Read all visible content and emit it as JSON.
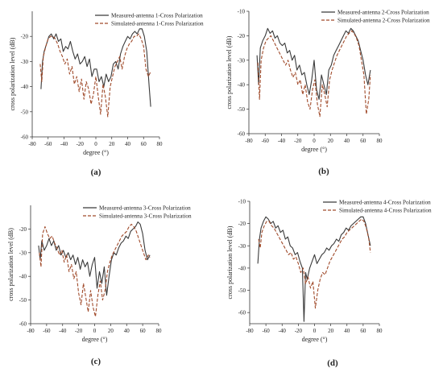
{
  "chart_data": [
    {
      "type": "line",
      "panel_label": "(a)",
      "xlabel": "degree (°)",
      "ylabel": "cross polarization level (dB)",
      "xlim": [
        -80,
        80
      ],
      "ylim": [
        -60,
        -10
      ],
      "xticks": [
        "-80",
        "-60",
        "-40",
        "-20",
        "0",
        "20",
        "40",
        "60",
        "80"
      ],
      "yticks": [
        "-20",
        "-30",
        "-40",
        "-50",
        "-60"
      ],
      "legend_position": "top-right",
      "series": [
        {
          "name": "Measured-antenna 1-Cross Polarization",
          "color": "#3a3a3a",
          "style": "solid",
          "x": [
            -69,
            -67,
            -65,
            -62,
            -59,
            -56,
            -53,
            -50,
            -47,
            -44,
            -41,
            -38,
            -35,
            -32,
            -29,
            -26,
            -23,
            -20,
            -17,
            -14,
            -11,
            -8,
            -5,
            -2,
            1,
            4,
            7,
            10,
            13,
            16,
            19,
            22,
            25,
            28,
            31,
            34,
            37,
            40,
            43,
            46,
            49,
            52,
            55,
            58,
            61,
            64,
            67,
            69
          ],
          "y": [
            -41,
            -30,
            -26,
            -23,
            -20,
            -19,
            -21,
            -19,
            -22,
            -21,
            -26,
            -24,
            -25,
            -22,
            -26,
            -29,
            -27,
            -31,
            -30,
            -28,
            -32,
            -29,
            -36,
            -33,
            -33,
            -38,
            -36,
            -40,
            -35,
            -38,
            -36,
            -31,
            -30,
            -33,
            -27,
            -24,
            -22,
            -20,
            -21,
            -19,
            -18,
            -19,
            -17,
            -17,
            -20,
            -26,
            -40,
            -48
          ]
        },
        {
          "name": "Simulated-antenna 1-Cross Polarization",
          "color": "#a04a2a",
          "style": "dashed",
          "x": [
            -70,
            -68,
            -66,
            -63,
            -60,
            -57,
            -54,
            -51,
            -48,
            -45,
            -42,
            -39,
            -36,
            -33,
            -30,
            -27,
            -24,
            -21,
            -18,
            -15,
            -12,
            -9,
            -6,
            -3,
            0,
            3,
            6,
            9,
            12,
            15,
            18,
            21,
            24,
            27,
            30,
            33,
            36,
            39,
            42,
            45,
            48,
            51,
            54,
            57,
            60,
            63,
            66,
            69
          ],
          "y": [
            -31,
            -38,
            -28,
            -24,
            -21,
            -20,
            -20,
            -21,
            -23,
            -26,
            -28,
            -31,
            -29,
            -35,
            -32,
            -39,
            -36,
            -42,
            -37,
            -45,
            -38,
            -41,
            -47,
            -43,
            -36,
            -44,
            -51,
            -39,
            -44,
            -52,
            -40,
            -36,
            -32,
            -30,
            -28,
            -33,
            -28,
            -25,
            -23,
            -22,
            -20,
            -20,
            -19,
            -21,
            -24,
            -33,
            -36,
            -34
          ]
        }
      ]
    },
    {
      "type": "line",
      "panel_label": "(b)",
      "xlabel": "degree (°)",
      "ylabel": "cross polarization level (dB)",
      "xlim": [
        -80,
        80
      ],
      "ylim": [
        -60,
        -10
      ],
      "xticks": [
        "-80",
        "-60",
        "-40",
        "-20",
        "0",
        "20",
        "40",
        "60",
        "80"
      ],
      "yticks": [
        "-10",
        "-20",
        "-30",
        "-40",
        "-50",
        "-60"
      ],
      "legend_position": "top-right",
      "series": [
        {
          "name": "Measured-antenna 2-Cross Polarization",
          "color": "#3a3a3a",
          "style": "solid",
          "x": [
            -70,
            -68,
            -66,
            -63,
            -60,
            -57,
            -54,
            -51,
            -48,
            -45,
            -42,
            -39,
            -36,
            -33,
            -30,
            -27,
            -24,
            -21,
            -18,
            -15,
            -12,
            -9,
            -6,
            -3,
            0,
            3,
            6,
            9,
            12,
            15,
            18,
            21,
            24,
            27,
            30,
            33,
            36,
            39,
            42,
            45,
            48,
            51,
            54,
            57,
            60,
            63,
            66,
            69
          ],
          "y": [
            -28,
            -40,
            -25,
            -22,
            -20,
            -17,
            -19,
            -18,
            -21,
            -20,
            -23,
            -24,
            -23,
            -27,
            -26,
            -30,
            -28,
            -34,
            -32,
            -36,
            -35,
            -40,
            -44,
            -38,
            -30,
            -42,
            -46,
            -36,
            -40,
            -44,
            -34,
            -32,
            -28,
            -26,
            -24,
            -22,
            -20,
            -18,
            -19,
            -17,
            -18,
            -20,
            -22,
            -26,
            -30,
            -36,
            -40,
            -34
          ]
        },
        {
          "name": "Simulated-antenna 2-Cross Polarization",
          "color": "#a04a2a",
          "style": "dashed",
          "x": [
            -69,
            -67,
            -65,
            -62,
            -59,
            -56,
            -53,
            -50,
            -47,
            -44,
            -41,
            -38,
            -35,
            -32,
            -29,
            -26,
            -23,
            -20,
            -17,
            -14,
            -11,
            -8,
            -5,
            -2,
            1,
            4,
            7,
            10,
            13,
            16,
            19,
            22,
            25,
            28,
            31,
            34,
            37,
            40,
            43,
            46,
            49,
            52,
            55,
            58,
            61,
            64,
            67,
            69
          ],
          "y": [
            -31,
            -46,
            -30,
            -25,
            -22,
            -21,
            -20,
            -22,
            -24,
            -26,
            -28,
            -30,
            -32,
            -30,
            -34,
            -37,
            -35,
            -40,
            -38,
            -44,
            -40,
            -47,
            -50,
            -42,
            -38,
            -48,
            -53,
            -40,
            -44,
            -49,
            -38,
            -34,
            -31,
            -28,
            -26,
            -24,
            -22,
            -20,
            -19,
            -18,
            -19,
            -21,
            -24,
            -30,
            -36,
            -52,
            -46,
            -36
          ]
        }
      ]
    },
    {
      "type": "line",
      "panel_label": "(c)",
      "xlabel": "degree (°)",
      "ylabel": "cross polarization level (dB)",
      "xlim": [
        -80,
        80
      ],
      "ylim": [
        -60,
        -10
      ],
      "xticks": [
        "-80",
        "-60",
        "-40",
        "-20",
        "0",
        "20",
        "40",
        "60",
        "80"
      ],
      "yticks": [
        "-20",
        "-30",
        "-40",
        "-50",
        "-60"
      ],
      "legend_position": "top-right",
      "series": [
        {
          "name": "Measured-antenna 3-Cross Polarization",
          "color": "#3a3a3a",
          "style": "solid",
          "x": [
            -70,
            -68,
            -66,
            -63,
            -60,
            -57,
            -54,
            -51,
            -48,
            -45,
            -42,
            -39,
            -36,
            -33,
            -30,
            -27,
            -24,
            -21,
            -18,
            -15,
            -12,
            -9,
            -6,
            -3,
            0,
            3,
            6,
            9,
            12,
            15,
            18,
            21,
            24,
            27,
            30,
            33,
            36,
            39,
            42,
            45,
            48,
            51,
            54,
            57,
            60,
            63,
            66,
            69
          ],
          "y": [
            -27,
            -33,
            -25,
            -29,
            -27,
            -24,
            -27,
            -25,
            -29,
            -27,
            -31,
            -29,
            -32,
            -30,
            -33,
            -31,
            -35,
            -32,
            -37,
            -33,
            -36,
            -34,
            -40,
            -35,
            -32,
            -45,
            -38,
            -43,
            -36,
            -48,
            -40,
            -33,
            -30,
            -31,
            -28,
            -26,
            -25,
            -23,
            -24,
            -21,
            -20,
            -19,
            -17,
            -18,
            -22,
            -29,
            -33,
            -31
          ]
        },
        {
          "name": "Simulated-antenna 3-Cross Polarization",
          "color": "#a04a2a",
          "style": "dashed",
          "x": [
            -69,
            -67,
            -65,
            -62,
            -59,
            -56,
            -53,
            -50,
            -47,
            -44,
            -41,
            -38,
            -35,
            -32,
            -29,
            -26,
            -23,
            -20,
            -17,
            -14,
            -11,
            -8,
            -5,
            -2,
            1,
            4,
            7,
            10,
            13,
            16,
            19,
            22,
            25,
            28,
            31,
            34,
            37,
            40,
            43,
            46,
            49,
            52,
            55,
            58,
            61,
            64,
            67,
            69
          ],
          "y": [
            -30,
            -36,
            -22,
            -19,
            -22,
            -24,
            -23,
            -26,
            -28,
            -31,
            -29,
            -34,
            -31,
            -38,
            -35,
            -41,
            -38,
            -47,
            -52,
            -43,
            -49,
            -55,
            -46,
            -53,
            -57,
            -48,
            -42,
            -50,
            -46,
            -38,
            -34,
            -31,
            -29,
            -27,
            -25,
            -23,
            -22,
            -21,
            -19,
            -18,
            -19,
            -21,
            -24,
            -27,
            -30,
            -33,
            -31,
            -32
          ]
        }
      ]
    },
    {
      "type": "line",
      "panel_label": "(d)",
      "xlabel": "degree (°)",
      "ylabel": "cross polarization level (dB)",
      "xlim": [
        -80,
        80
      ],
      "ylim": [
        -65,
        -10
      ],
      "xticks": [
        "-80",
        "-60",
        "-40",
        "-20",
        "0",
        "20",
        "40",
        "60",
        "80"
      ],
      "yticks": [
        "-10",
        "-20",
        "-30",
        "-40",
        "-50",
        "-60"
      ],
      "legend_position": "top-right",
      "series": [
        {
          "name": "Measured-antenna 4-Cross Polarization",
          "color": "#3a3a3a",
          "style": "solid",
          "x": [
            -70,
            -68,
            -66,
            -63,
            -60,
            -57,
            -54,
            -51,
            -48,
            -45,
            -42,
            -39,
            -36,
            -33,
            -30,
            -27,
            -24,
            -21,
            -18,
            -15,
            -13,
            -11,
            -9,
            -6,
            -3,
            0,
            3,
            6,
            9,
            12,
            15,
            18,
            21,
            24,
            27,
            30,
            33,
            36,
            39,
            42,
            45,
            48,
            51,
            54,
            57,
            60,
            63,
            66,
            69
          ],
          "y": [
            -38,
            -27,
            -22,
            -19,
            -17,
            -18,
            -20,
            -19,
            -22,
            -21,
            -24,
            -23,
            -27,
            -26,
            -30,
            -31,
            -34,
            -33,
            -37,
            -40,
            -64,
            -42,
            -45,
            -40,
            -37,
            -34,
            -38,
            -36,
            -34,
            -33,
            -31,
            -32,
            -30,
            -29,
            -27,
            -28,
            -25,
            -24,
            -22,
            -23,
            -21,
            -20,
            -19,
            -18,
            -17,
            -17,
            -20,
            -25,
            -30
          ]
        },
        {
          "name": "Simulated-antenna 4-Cross Polarization",
          "color": "#a04a2a",
          "style": "dashed",
          "x": [
            -69,
            -67,
            -65,
            -62,
            -59,
            -56,
            -53,
            -50,
            -47,
            -44,
            -41,
            -38,
            -35,
            -32,
            -29,
            -26,
            -23,
            -20,
            -17,
            -14,
            -11,
            -8,
            -5,
            -2,
            1,
            4,
            7,
            10,
            13,
            16,
            19,
            22,
            25,
            28,
            31,
            34,
            37,
            40,
            43,
            46,
            49,
            52,
            55,
            58,
            61,
            64,
            67,
            69
          ],
          "y": [
            -27,
            -31,
            -24,
            -21,
            -19,
            -19,
            -21,
            -22,
            -24,
            -26,
            -28,
            -30,
            -32,
            -34,
            -33,
            -36,
            -35,
            -38,
            -42,
            -40,
            -47,
            -44,
            -49,
            -46,
            -58,
            -50,
            -45,
            -42,
            -43,
            -40,
            -37,
            -35,
            -33,
            -31,
            -29,
            -27,
            -26,
            -24,
            -23,
            -22,
            -21,
            -20,
            -19,
            -18,
            -19,
            -22,
            -27,
            -33
          ]
        }
      ]
    }
  ]
}
